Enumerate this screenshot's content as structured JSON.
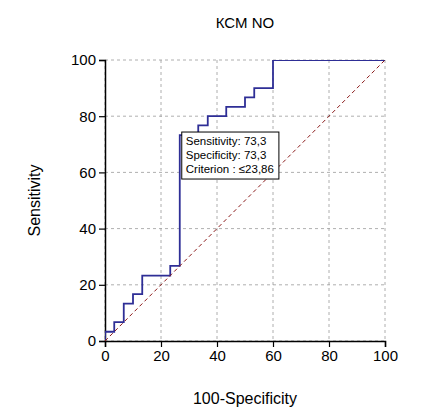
{
  "chart_data": {
    "type": "line",
    "title": "КСМ NO",
    "x_label": "100-Specificity",
    "y_label": "Sensitivity",
    "series": [
      {
        "color": "#2e2e96",
        "line_style": "solid",
        "x": [
          0,
          0,
          3.3,
          3.3,
          6.7,
          6.7,
          10,
          10,
          13.3,
          13.3,
          23.3,
          23.3,
          26.7,
          26.7,
          33.3,
          33.3,
          36.7,
          36.7,
          43.3,
          43.3,
          50,
          50,
          53.3,
          53.3,
          60,
          60,
          100
        ],
        "values": [
          0,
          3.3,
          3.3,
          6.7,
          6.7,
          13.3,
          13.3,
          16.7,
          16.7,
          23.3,
          23.3,
          26.7,
          26.7,
          73.3,
          73.3,
          76.7,
          76.7,
          80,
          80,
          83.3,
          83.3,
          86.7,
          86.7,
          90,
          90,
          100,
          100
        ]
      },
      {
        "color": "#8b1a1a",
        "line_style": "dashed",
        "x": [
          0,
          100
        ],
        "values": [
          0,
          100
        ]
      }
    ],
    "annotations": [
      {
        "x": 26.7,
        "y": 73.3,
        "text": [
          "Sensitivity: 73,3",
          "Specificity: 73,3",
          "Criterion : ≤23,86"
        ]
      }
    ],
    "xlim": [
      0,
      100
    ],
    "xticks": [
      0,
      20,
      40,
      60,
      80,
      100
    ],
    "ylim": [
      0,
      100
    ],
    "yticks": [
      0,
      20,
      40,
      60,
      80,
      100
    ],
    "grid": true
  }
}
